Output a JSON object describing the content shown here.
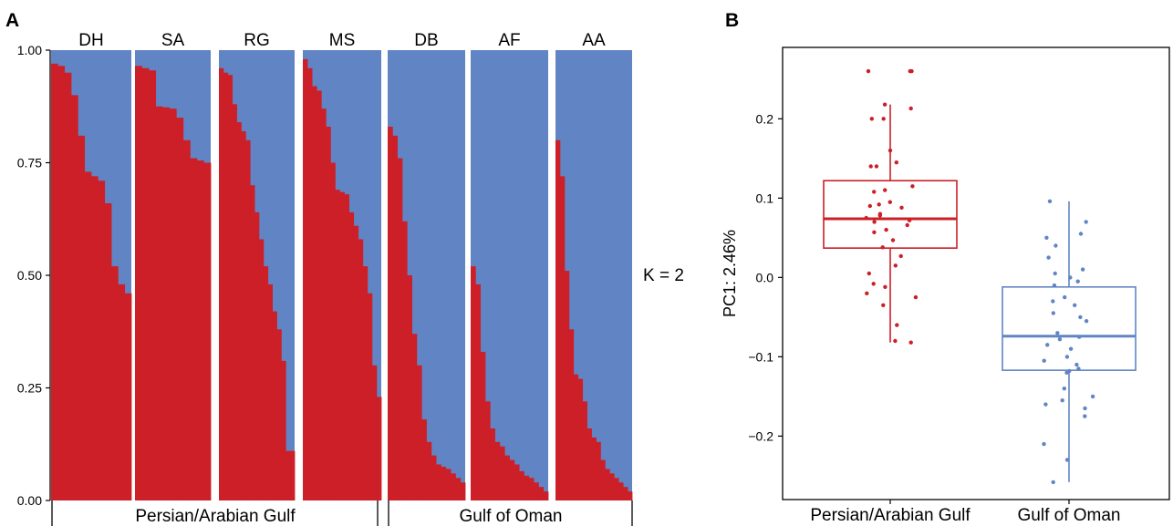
{
  "colors": {
    "cluster1": "#cc1f27",
    "cluster2": "#6185c4",
    "axis": "#000000"
  },
  "panel_a": {
    "letter": "A",
    "k_label": "K = 2",
    "y_ticks": [
      "0.00",
      "0.25",
      "0.50",
      "0.75",
      "1.00"
    ],
    "regions": [
      "Persian/Arabian Gulf",
      "Gulf of Oman"
    ]
  },
  "panel_b": {
    "letter": "B",
    "y_label": "PC1: 2.46%",
    "y_ticks": [
      "−0.2",
      "−0.1",
      "0.0",
      "0.1",
      "0.2"
    ]
  },
  "chart_data": [
    {
      "type": "bar",
      "stacked": true,
      "title": "",
      "xlabel": "",
      "ylabel": "",
      "ylim": [
        0,
        1
      ],
      "k": 2,
      "series_names": [
        "",
        ""
      ],
      "series_colors": [
        "#cc1f27",
        "#6185c4"
      ],
      "groups": [
        {
          "name": "DH",
          "region": "Persian/Arabian Gulf",
          "values": [
            0.97,
            0.965,
            0.95,
            0.9,
            0.81,
            0.73,
            0.72,
            0.71,
            0.66,
            0.52,
            0.48,
            0.46
          ]
        },
        {
          "name": "SA",
          "region": "Persian/Arabian Gulf",
          "values": [
            0.965,
            0.96,
            0.955,
            0.875,
            0.873,
            0.87,
            0.85,
            0.8,
            0.76,
            0.755,
            0.75
          ]
        },
        {
          "name": "RG",
          "region": "Persian/Arabian Gulf",
          "values": [
            0.96,
            0.95,
            0.945,
            0.88,
            0.84,
            0.82,
            0.8,
            0.7,
            0.64,
            0.58,
            0.52,
            0.48,
            0.42,
            0.38,
            0.31,
            0.11,
            0.11
          ]
        },
        {
          "name": "MS",
          "region": "Persian/Arabian Gulf",
          "values": [
            0.98,
            0.96,
            0.92,
            0.91,
            0.87,
            0.83,
            0.75,
            0.69,
            0.685,
            0.68,
            0.64,
            0.61,
            0.58,
            0.52,
            0.46,
            0.3,
            0.23
          ]
        },
        {
          "name": "DB",
          "region": "Gulf of Oman",
          "values": [
            0.83,
            0.81,
            0.76,
            0.62,
            0.5,
            0.37,
            0.3,
            0.18,
            0.13,
            0.1,
            0.08,
            0.075,
            0.07,
            0.06,
            0.05,
            0.04
          ]
        },
        {
          "name": "AF",
          "region": "Gulf of Oman",
          "values": [
            0.52,
            0.48,
            0.33,
            0.22,
            0.16,
            0.13,
            0.12,
            0.1,
            0.09,
            0.08,
            0.065,
            0.055,
            0.05,
            0.04,
            0.03,
            0.02
          ]
        },
        {
          "name": "AA",
          "region": "Gulf of Oman",
          "values": [
            0.8,
            0.72,
            0.51,
            0.38,
            0.28,
            0.27,
            0.22,
            0.16,
            0.14,
            0.13,
            0.09,
            0.07,
            0.06,
            0.05,
            0.04,
            0.03,
            0.02
          ]
        }
      ]
    },
    {
      "type": "box",
      "title": "",
      "xlabel": "",
      "ylabel": "PC1: 2.46%",
      "ylim": [
        -0.28,
        0.29
      ],
      "categories": [
        "Persian/Arabian Gulf",
        "Gulf of Oman"
      ],
      "series_colors": [
        "#cc1f27",
        "#6185c4"
      ],
      "boxes": [
        {
          "category": "Persian/Arabian Gulf",
          "min": -0.082,
          "q1": 0.037,
          "median": 0.074,
          "q3": 0.122,
          "max": 0.218
        },
        {
          "category": "Gulf of Oman",
          "min": -0.258,
          "q1": -0.117,
          "median": -0.074,
          "q3": -0.012,
          "max": 0.096
        }
      ],
      "points": [
        [
          0.26,
          0.26,
          0.26,
          0.218,
          0.213,
          0.2,
          0.2,
          0.16,
          0.145,
          0.14,
          0.14,
          0.115,
          0.11,
          0.108,
          0.095,
          0.092,
          0.09,
          0.088,
          0.08,
          0.078,
          0.075,
          0.072,
          0.07,
          0.066,
          0.06,
          0.057,
          0.047,
          0.038,
          0.027,
          0.015,
          0.005,
          -0.008,
          -0.012,
          -0.02,
          -0.025,
          -0.035,
          -0.06,
          -0.08,
          -0.082
        ],
        [
          0.096,
          0.07,
          0.055,
          0.05,
          0.04,
          0.025,
          0.01,
          0.005,
          0.0,
          -0.005,
          -0.01,
          -0.025,
          -0.03,
          -0.035,
          -0.045,
          -0.05,
          -0.055,
          -0.07,
          -0.075,
          -0.078,
          -0.085,
          -0.09,
          -0.1,
          -0.105,
          -0.11,
          -0.115,
          -0.118,
          -0.12,
          -0.14,
          -0.15,
          -0.155,
          -0.16,
          -0.165,
          -0.175,
          -0.21,
          -0.23,
          -0.258
        ]
      ]
    }
  ]
}
